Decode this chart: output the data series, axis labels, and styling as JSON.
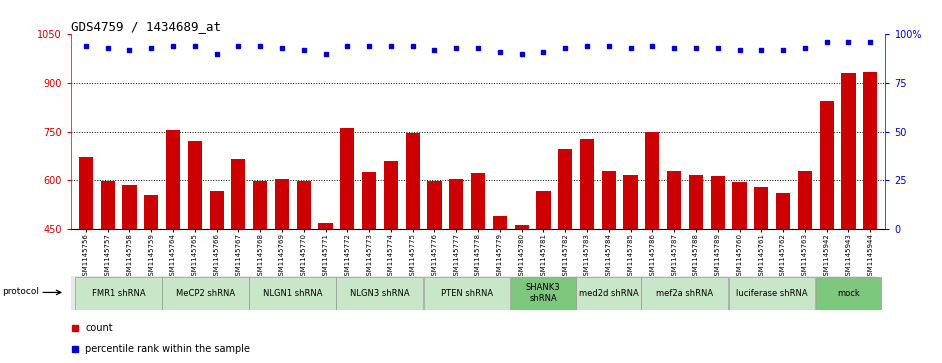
{
  "title": "GDS4759 / 1434689_at",
  "samples": [
    "GSM1145756",
    "GSM1145757",
    "GSM1145758",
    "GSM1145759",
    "GSM1145764",
    "GSM1145765",
    "GSM1145766",
    "GSM1145767",
    "GSM1145768",
    "GSM1145769",
    "GSM1145770",
    "GSM1145771",
    "GSM1145772",
    "GSM1145773",
    "GSM1145774",
    "GSM1145775",
    "GSM1145776",
    "GSM1145777",
    "GSM1145778",
    "GSM1145779",
    "GSM1145780",
    "GSM1145781",
    "GSM1145782",
    "GSM1145783",
    "GSM1145784",
    "GSM1145785",
    "GSM1145786",
    "GSM1145787",
    "GSM1145788",
    "GSM1145789",
    "GSM1145760",
    "GSM1145761",
    "GSM1145762",
    "GSM1145763",
    "GSM1145942",
    "GSM1145943",
    "GSM1145944"
  ],
  "bar_values": [
    670,
    597,
    584,
    555,
    755,
    720,
    565,
    665,
    598,
    605,
    597,
    468,
    760,
    625,
    660,
    745,
    597,
    605,
    623,
    488,
    462,
    565,
    697,
    726,
    629,
    617,
    750,
    628,
    617,
    612,
    595,
    580,
    560,
    627,
    845,
    930,
    935
  ],
  "percentile_values": [
    94,
    93,
    92,
    93,
    94,
    94,
    90,
    94,
    94,
    93,
    92,
    90,
    94,
    94,
    94,
    94,
    92,
    93,
    93,
    91,
    90,
    91,
    93,
    94,
    94,
    93,
    94,
    93,
    93,
    93,
    92,
    92,
    92,
    93,
    96,
    96,
    96
  ],
  "protocols": [
    {
      "label": "FMR1 shRNA",
      "start": 0,
      "end": 4,
      "color": "#c8e6c8"
    },
    {
      "label": "MeCP2 shRNA",
      "start": 4,
      "end": 8,
      "color": "#c8e6c8"
    },
    {
      "label": "NLGN1 shRNA",
      "start": 8,
      "end": 12,
      "color": "#c8e6c8"
    },
    {
      "label": "NLGN3 shRNA",
      "start": 12,
      "end": 16,
      "color": "#c8e6c8"
    },
    {
      "label": "PTEN shRNA",
      "start": 16,
      "end": 20,
      "color": "#c8e6c8"
    },
    {
      "label": "SHANK3\nshRNA",
      "start": 20,
      "end": 23,
      "color": "#7ec87e"
    },
    {
      "label": "med2d shRNA",
      "start": 23,
      "end": 26,
      "color": "#c8e6c8"
    },
    {
      "label": "mef2a shRNA",
      "start": 26,
      "end": 30,
      "color": "#c8e6c8"
    },
    {
      "label": "luciferase shRNA",
      "start": 30,
      "end": 34,
      "color": "#c8e6c8"
    },
    {
      "label": "mock",
      "start": 34,
      "end": 37,
      "color": "#7ec87e"
    }
  ],
  "ylim_left": [
    450,
    1050
  ],
  "ylim_right": [
    0,
    100
  ],
  "yticks_left": [
    450,
    600,
    750,
    900,
    1050
  ],
  "yticks_right": [
    0,
    25,
    50,
    75,
    100
  ],
  "bar_color": "#cc0000",
  "dot_color": "#0000cc",
  "grid_lines": [
    600,
    750,
    900
  ],
  "title_fontsize": 9,
  "xtick_fontsize": 5.0,
  "ytick_fontsize": 7,
  "protocol_fontsize": 6,
  "legend_fontsize": 7
}
